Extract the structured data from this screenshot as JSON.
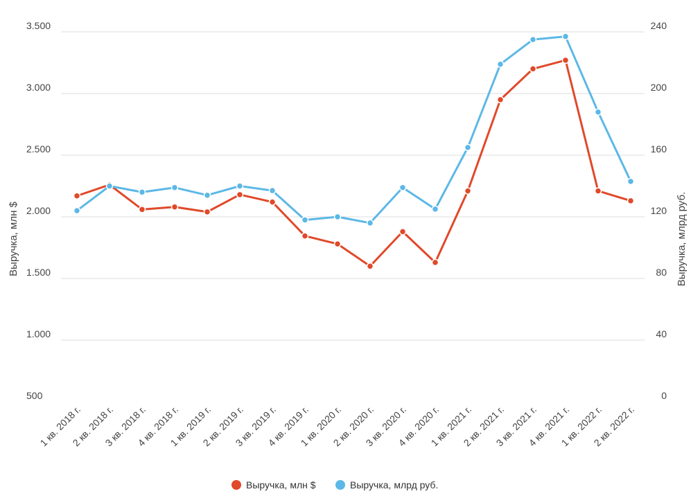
{
  "chart_data": {
    "type": "line",
    "categories": [
      "1 кв. 2018 г.",
      "2 кв. 2018 г.",
      "3 кв. 2018 г.",
      "4 кв. 2018 г.",
      "1 кв. 2019 г.",
      "2 кв. 2019 г.",
      "3 кв. 2019 г.",
      "4 кв. 2019 г.",
      "1 кв. 2020 г.",
      "2 кв. 2020 г.",
      "3 кв. 2020 г.",
      "4 кв. 2020 г.",
      "1 кв. 2021 г.",
      "2 кв. 2021 г.",
      "3 кв. 2021 г.",
      "4 кв. 2021 г.",
      "1 кв. 2022 г.",
      "2 кв. 2022 г."
    ],
    "series": [
      {
        "name": "Выручка, млн $",
        "axis": "left",
        "color": "#e0492a",
        "values": [
          2170,
          2260,
          2060,
          2080,
          2040,
          2180,
          2120,
          1845,
          1780,
          1600,
          1880,
          1630,
          2210,
          2950,
          3200,
          3270,
          2210,
          2130
        ]
      },
      {
        "name": "Выручка, млрд руб.",
        "axis": "right",
        "color": "#5cb8e6",
        "values": [
          124,
          140,
          136,
          139,
          134,
          140,
          137,
          118,
          120,
          116,
          139,
          125,
          165,
          219,
          235,
          237,
          188,
          143
        ]
      }
    ],
    "y_left": {
      "label": "Выручка, млн $",
      "range": [
        500,
        3500
      ],
      "ticks": [
        500,
        1000,
        1500,
        2000,
        2500,
        3000,
        3500
      ],
      "tick_labels": [
        "500",
        "1.000",
        "1.500",
        "2.000",
        "2.500",
        "3.000",
        "3.500"
      ]
    },
    "y_right": {
      "label": "Выручка, млрд руб.",
      "range": [
        0,
        240
      ],
      "ticks": [
        0,
        40,
        80,
        120,
        160,
        200,
        240
      ],
      "tick_labels": [
        "0",
        "40",
        "80",
        "120",
        "160",
        "200",
        "240"
      ]
    },
    "grid": true,
    "legend": "bottom-center",
    "title": ""
  }
}
